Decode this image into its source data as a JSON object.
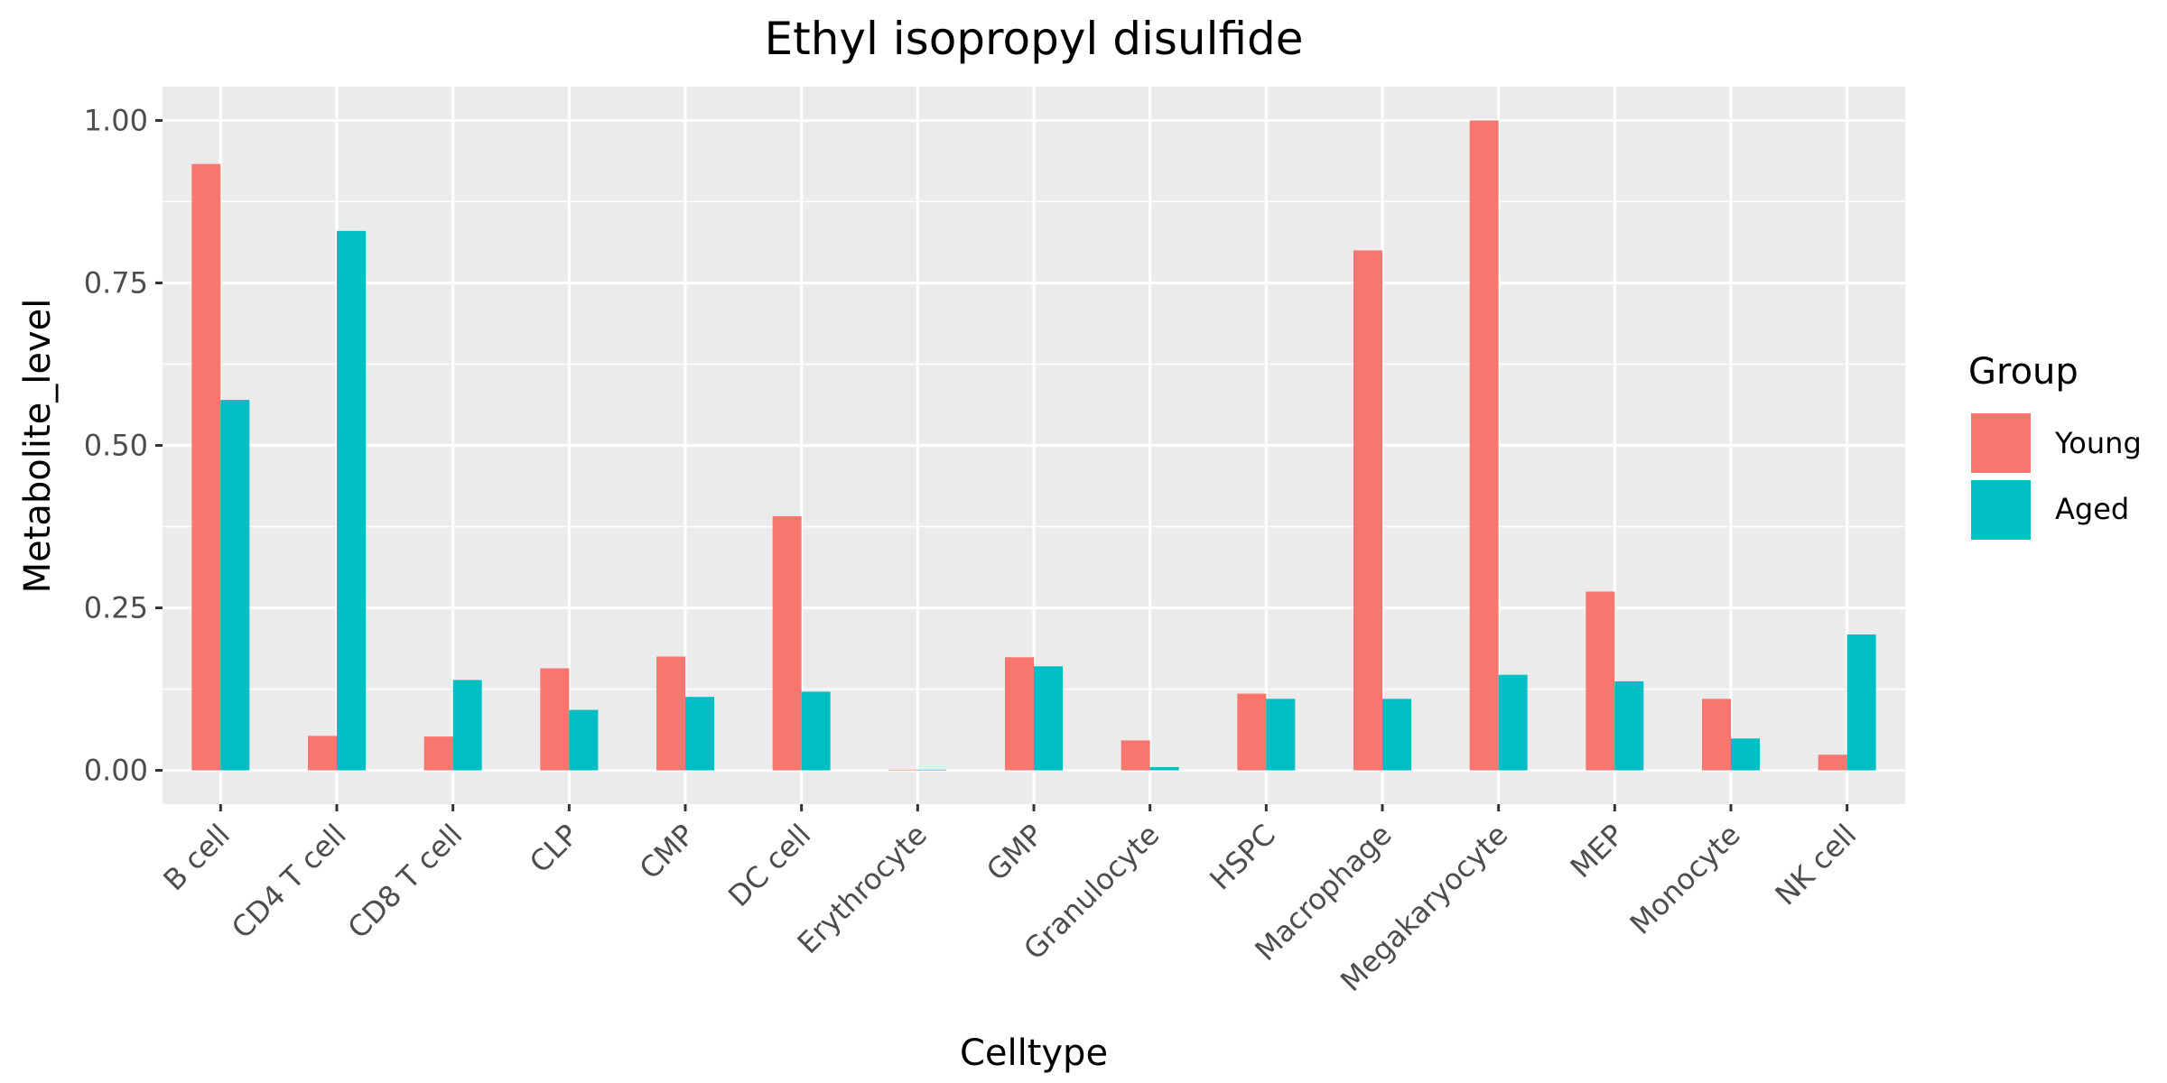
{
  "chart_data": {
    "type": "bar",
    "title": "Ethyl isopropyl disulfide",
    "xlabel": "Celltype",
    "ylabel": "Metabolite_level",
    "categories": [
      "B cell",
      "CD4 T cell",
      "CD8 T cell",
      "CLP",
      "CMP",
      "DC cell",
      "Erythrocyte",
      "GMP",
      "Granulocyte",
      "HSPC",
      "Macrophage",
      "Megakaryocyte",
      "MEP",
      "Monocyte",
      "NK cell"
    ],
    "series": [
      {
        "name": "Young",
        "color": "#F8766D",
        "values": [
          0.933,
          0.053,
          0.052,
          0.157,
          0.175,
          0.391,
          0.001,
          0.174,
          0.046,
          0.118,
          0.8,
          1.0,
          0.275,
          0.11,
          0.024
        ]
      },
      {
        "name": "Aged",
        "color": "#00BFC4",
        "values": [
          0.57,
          0.83,
          0.139,
          0.093,
          0.113,
          0.121,
          0.0,
          0.16,
          0.005,
          0.11,
          0.11,
          0.147,
          0.137,
          0.049,
          0.209
        ]
      }
    ],
    "ylim": [
      -0.052,
      1.052
    ],
    "yticks": [
      0,
      0.25,
      0.5,
      0.75,
      1.0
    ],
    "ytick_labels": [
      "0.00",
      "0.25",
      "0.50",
      "0.75",
      "1.00"
    ],
    "legend": {
      "title": "Group",
      "position": "right"
    },
    "grid": true,
    "panel_background": "#EBEBEB"
  }
}
